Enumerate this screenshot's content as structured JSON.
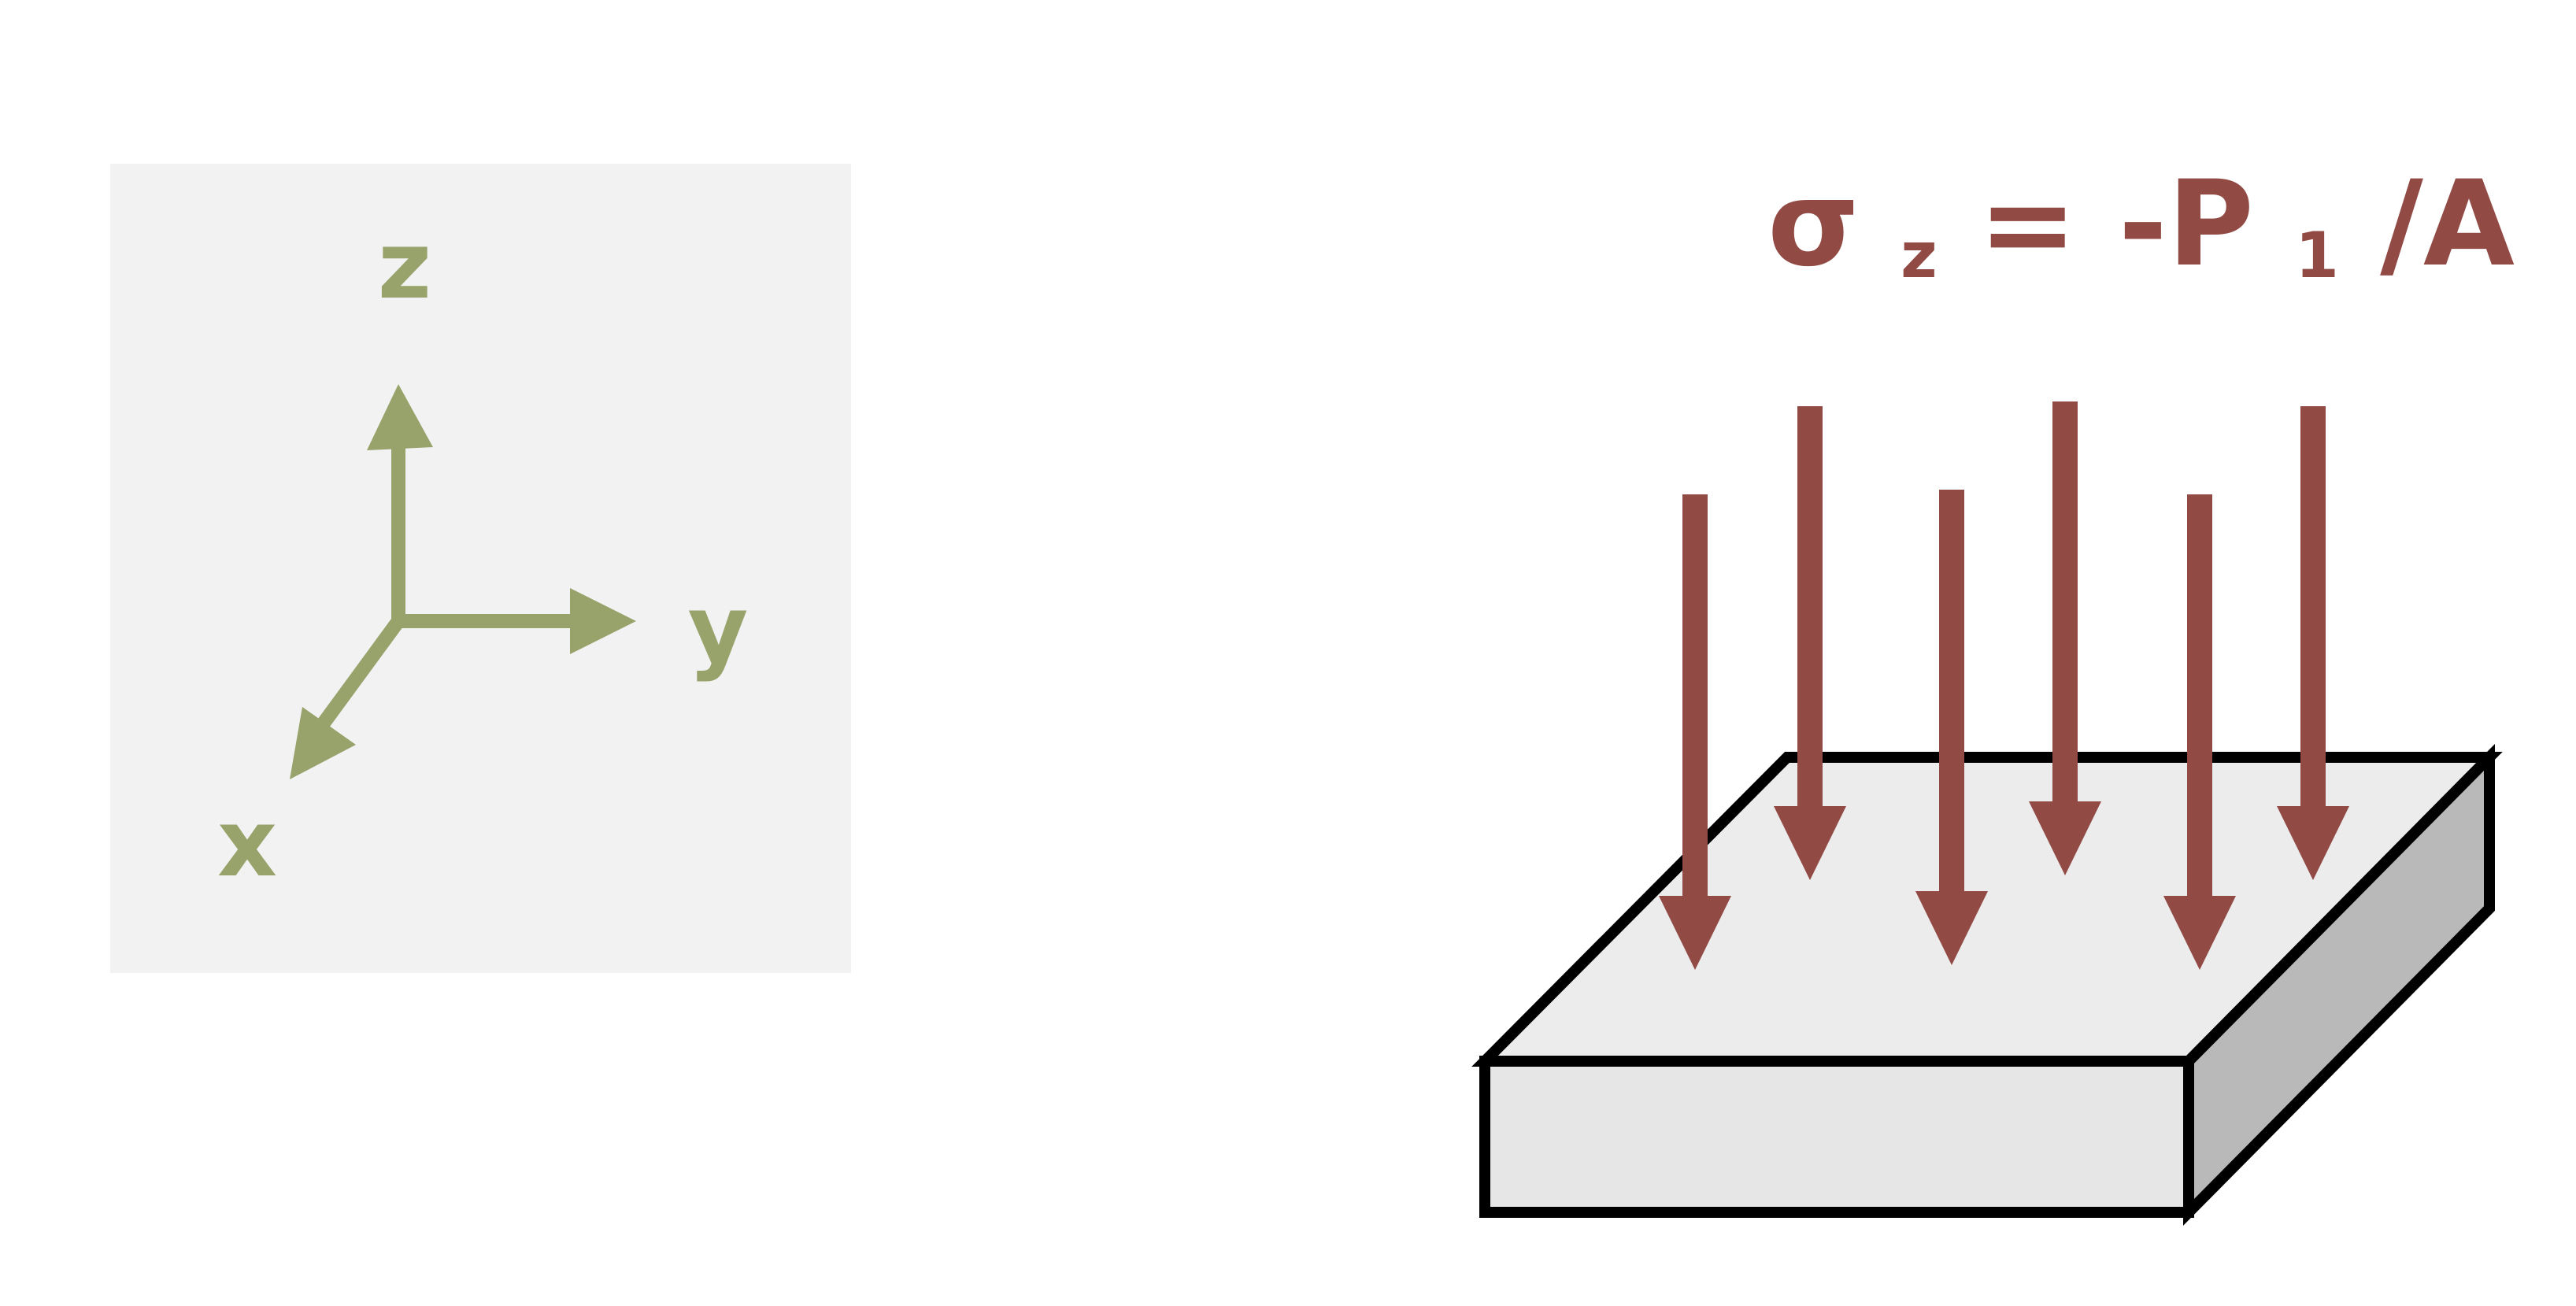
{
  "colors": {
    "axis_green": "#98a36b",
    "force_red": "#924a45",
    "panel_bg": "#f2f2f2",
    "block_top": "#ececec",
    "block_front": "#e6e6e6",
    "block_side": "#b9b9b9",
    "outline": "#000000"
  },
  "axes": {
    "z_label": "z",
    "y_label": "y",
    "x_label": "x"
  },
  "formula": {
    "sigma": "σ",
    "sigma_sub": "z",
    "middle": " = -P",
    "p_sub": "1",
    "tail": "/A"
  },
  "icons": {
    "load_arrows": "down-arrow-icon"
  }
}
